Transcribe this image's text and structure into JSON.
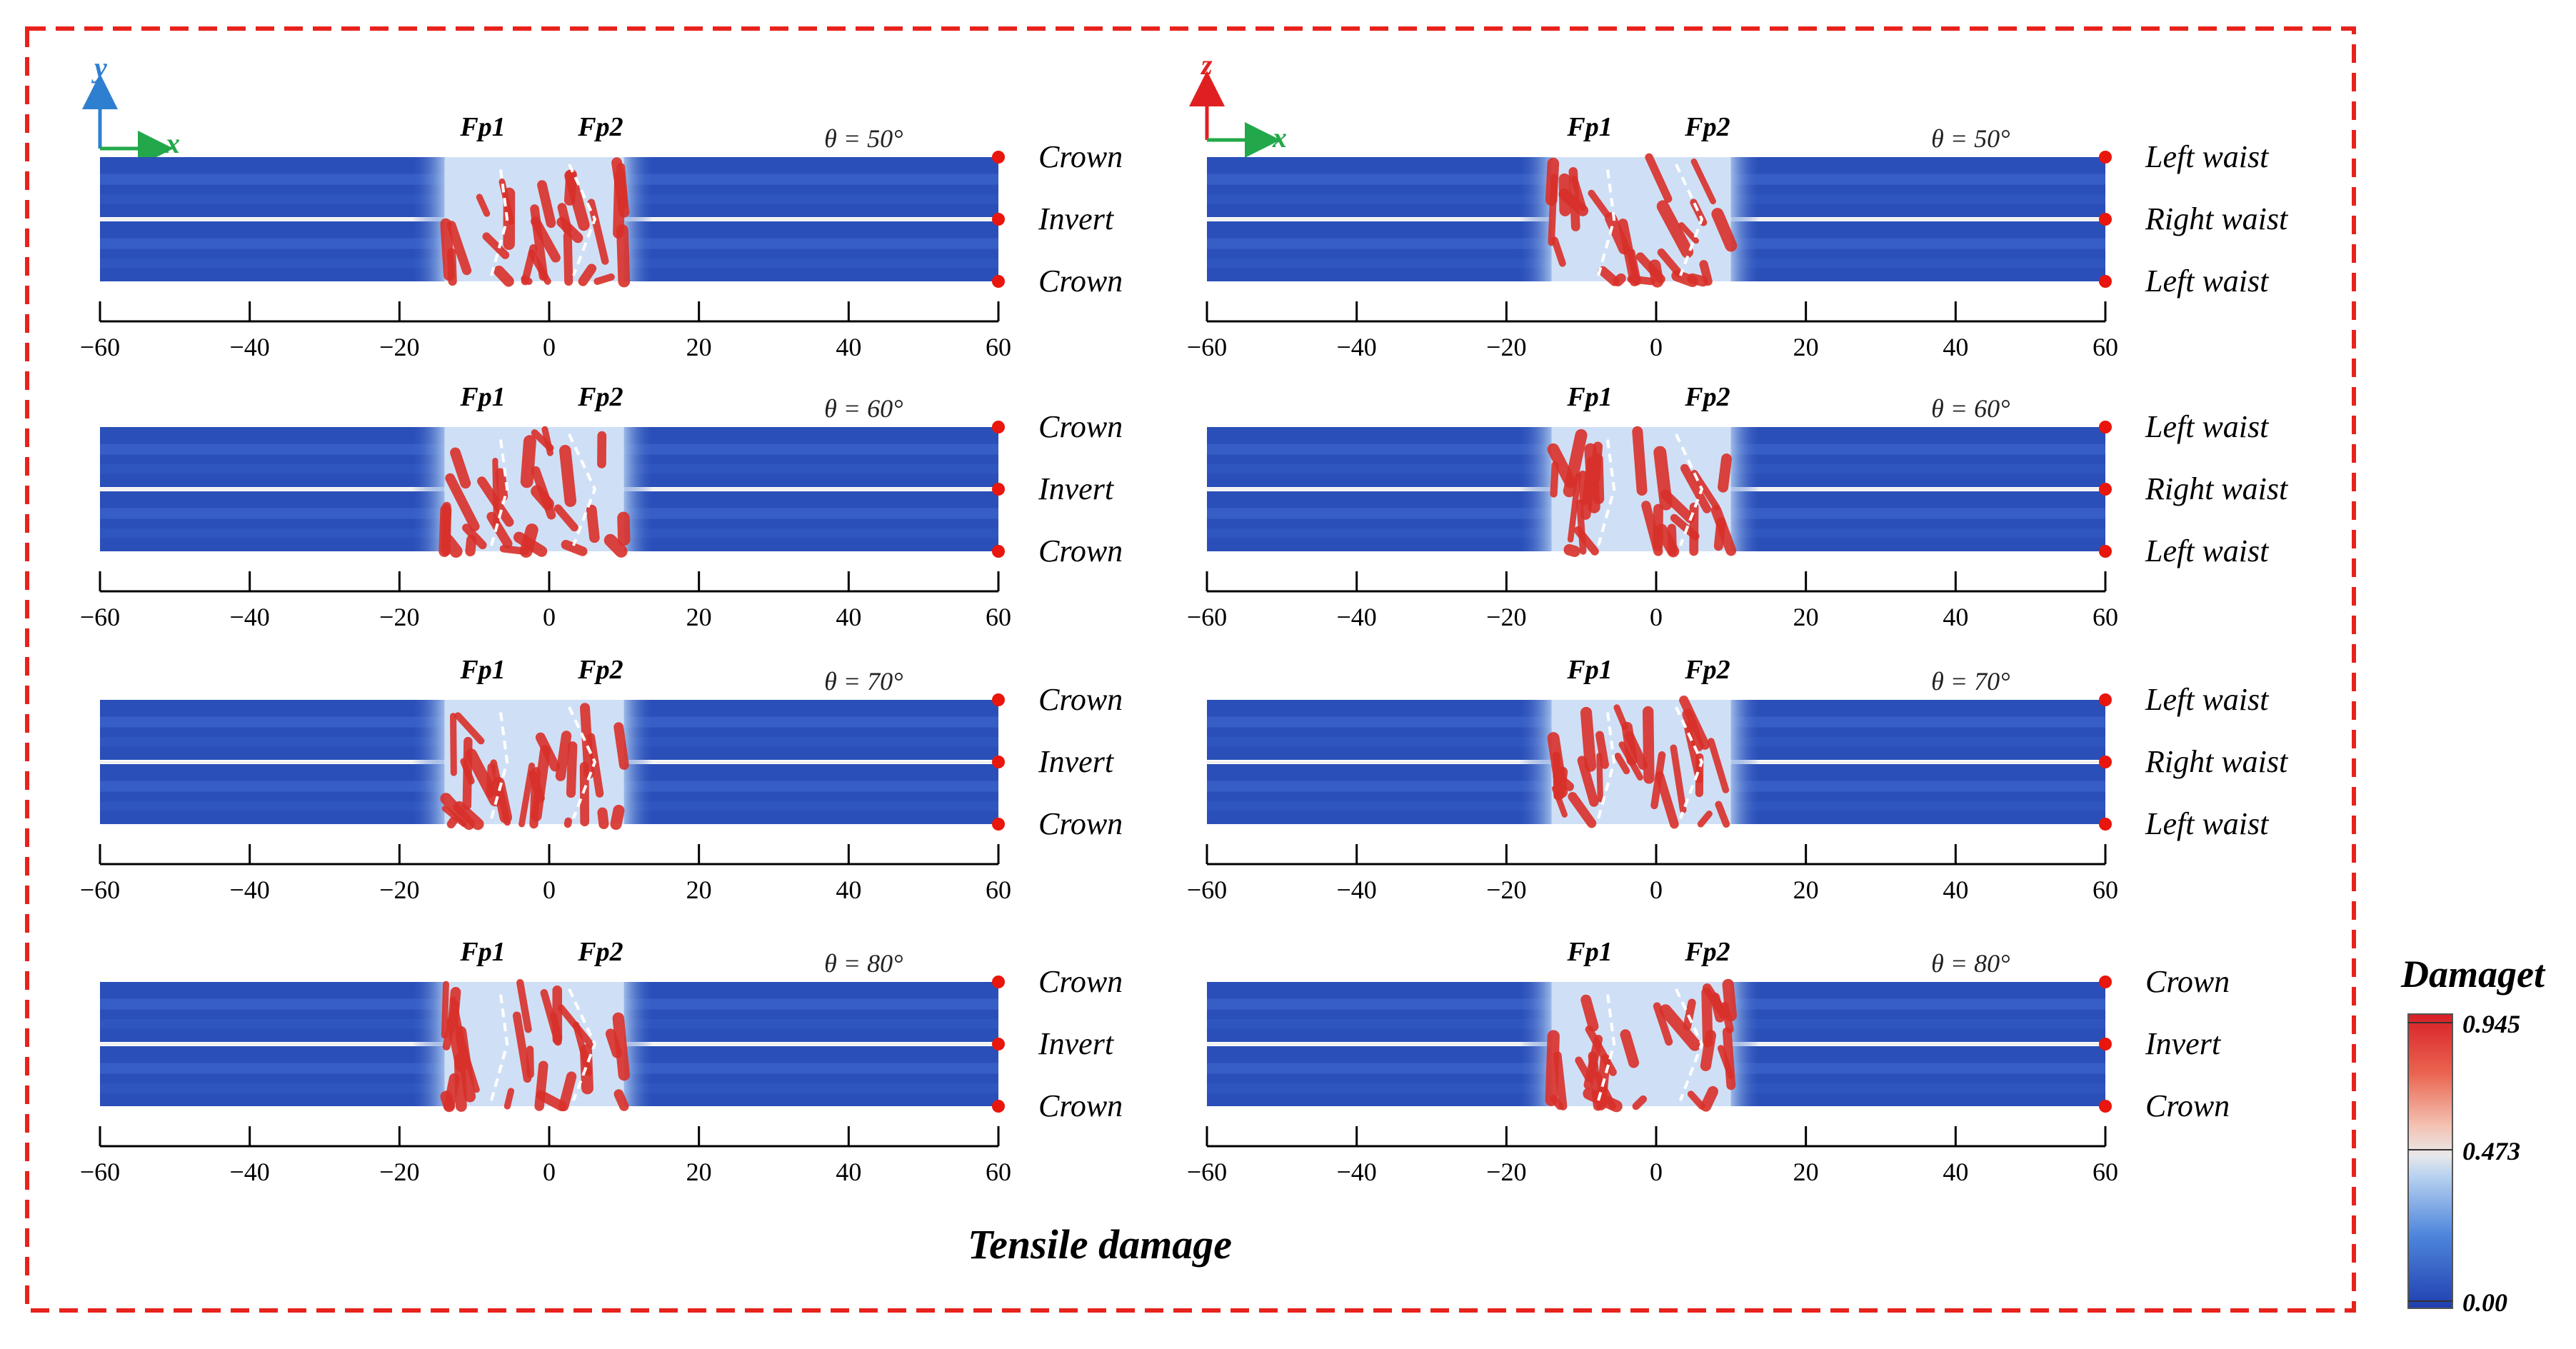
{
  "figure": {
    "caption": "Tensile damage",
    "axis_letters": {
      "y": "y",
      "z": "z",
      "x": "x"
    },
    "tick_labels": [
      "−60",
      "−40",
      "−20",
      "0",
      "20",
      "40",
      "60"
    ],
    "fracture_plane_labels": [
      "Fp1",
      "Fp2"
    ],
    "colors": {
      "frame": "#e8221c",
      "axis_y": "#2f7fd0",
      "axis_z": "#e02020",
      "axis_x": "#22a84a",
      "marker": "#e8160c",
      "band_dark": "#2a4fb8",
      "band_light": "#3a62c8",
      "damage": "#d9302a"
    }
  },
  "panels": [
    {
      "id": "left-50",
      "theta": "θ = 50°",
      "side_labels": [
        "Crown",
        "Invert",
        "Crown"
      ]
    },
    {
      "id": "left-60",
      "theta": "θ = 60°",
      "side_labels": [
        "Crown",
        "Invert",
        "Crown"
      ]
    },
    {
      "id": "left-70",
      "theta": "θ = 70°",
      "side_labels": [
        "Crown",
        "Invert",
        "Crown"
      ]
    },
    {
      "id": "left-80",
      "theta": "θ = 80°",
      "side_labels": [
        "Crown",
        "Invert",
        "Crown"
      ]
    },
    {
      "id": "right-50",
      "theta": "θ = 50°",
      "side_labels": [
        "Left waist",
        "Right waist",
        "Left waist"
      ]
    },
    {
      "id": "right-60",
      "theta": "θ = 60°",
      "side_labels": [
        "Left waist",
        "Right waist",
        "Left waist"
      ]
    },
    {
      "id": "right-70",
      "theta": "θ = 70°",
      "side_labels": [
        "Left waist",
        "Right waist",
        "Left waist"
      ]
    },
    {
      "id": "right-80",
      "theta": "θ = 80°",
      "side_labels": [
        "Crown",
        "Invert",
        "Crown"
      ]
    }
  ],
  "colorbar": {
    "title": "Damaget",
    "max_label": "0.945",
    "mid_label": "0.473",
    "min_label": "0.00",
    "min_value": 0.0,
    "mid_value": 0.473,
    "max_value": 0.945
  }
}
